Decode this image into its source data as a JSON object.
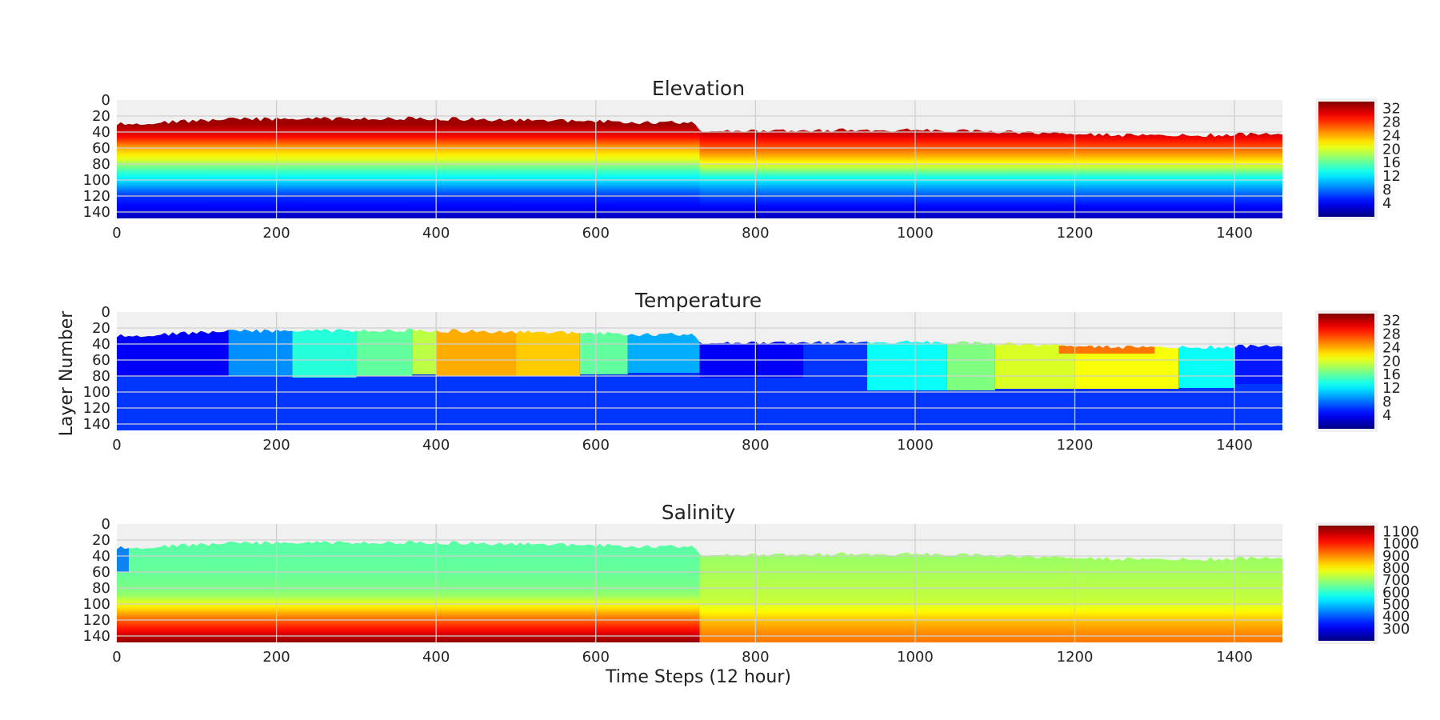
{
  "figure": {
    "shared_xlabel": "Time Steps (12 hour)",
    "shared_ylabel": "Layer Number"
  },
  "chart_data": [
    {
      "type": "heatmap",
      "title": "Elevation",
      "colormap": "jet",
      "xlim": [
        0,
        1460
      ],
      "ylim": [
        148,
        0
      ],
      "y_inverted": true,
      "x_ticks": [
        0,
        200,
        400,
        600,
        800,
        1000,
        1200,
        1400
      ],
      "y_ticks": [
        0,
        20,
        40,
        60,
        80,
        100,
        120,
        140
      ],
      "grid": true,
      "colorbar": {
        "range": [
          0,
          34
        ],
        "ticks": [
          32,
          28,
          24,
          20,
          16,
          12,
          8,
          4
        ]
      },
      "surface_breakpoints": {
        "x": [
          0,
          150,
          380,
          728,
          730,
          1000,
          1300,
          1460
        ],
        "top_layer": [
          30,
          24,
          23,
          29,
          40,
          37,
          45,
          42
        ]
      },
      "regime_change_x": 730,
      "profile_first_half": {
        "layer": [
          30,
          45,
          60,
          75,
          88,
          100,
          110,
          120,
          135,
          148
        ],
        "value": [
          33,
          30,
          24,
          20,
          15,
          12,
          9,
          6,
          4,
          2
        ]
      },
      "profile_second_half": {
        "layer": [
          40,
          55,
          70,
          82,
          95,
          108,
          120,
          135,
          148
        ],
        "value": [
          32,
          28,
          24,
          20,
          14,
          10,
          7,
          4,
          2
        ]
      }
    },
    {
      "type": "heatmap",
      "title": "Temperature",
      "colormap": "jet",
      "xlim": [
        0,
        1460
      ],
      "ylim": [
        148,
        0
      ],
      "y_inverted": true,
      "x_ticks": [
        0,
        200,
        400,
        600,
        800,
        1000,
        1200,
        1400
      ],
      "y_ticks": [
        0,
        20,
        40,
        60,
        80,
        100,
        120,
        140
      ],
      "grid": true,
      "colorbar": {
        "range": [
          0,
          34
        ],
        "ticks": [
          32,
          28,
          24,
          20,
          16,
          12,
          8,
          4
        ]
      },
      "surface_breakpoints": {
        "x": [
          0,
          150,
          380,
          728,
          730,
          1000,
          1300,
          1460
        ],
        "top_layer": [
          30,
          24,
          23,
          29,
          40,
          37,
          45,
          42
        ]
      },
      "deep_value": 6,
      "upper_layer_segments": [
        {
          "x": [
            0,
            140
          ],
          "value": 4,
          "bottom_layer": 80
        },
        {
          "x": [
            140,
            220
          ],
          "value": 9,
          "bottom_layer": 80
        },
        {
          "x": [
            220,
            300
          ],
          "value": 14,
          "bottom_layer": 82
        },
        {
          "x": [
            300,
            370
          ],
          "value": 16,
          "bottom_layer": 80
        },
        {
          "x": [
            370,
            400
          ],
          "value": 19,
          "bottom_layer": 78
        },
        {
          "x": [
            400,
            500
          ],
          "value": 24,
          "bottom_layer": 80
        },
        {
          "x": [
            500,
            580
          ],
          "value": 23,
          "bottom_layer": 80
        },
        {
          "x": [
            580,
            640
          ],
          "value": 16,
          "bottom_layer": 78
        },
        {
          "x": [
            640,
            730
          ],
          "value": 10,
          "bottom_layer": 76
        },
        {
          "x": [
            730,
            860
          ],
          "value": 4,
          "bottom_layer": 82
        },
        {
          "x": [
            860,
            940
          ],
          "value": 6,
          "bottom_layer": 88
        },
        {
          "x": [
            940,
            1040
          ],
          "value": 13,
          "bottom_layer": 98
        },
        {
          "x": [
            1040,
            1100
          ],
          "value": 17,
          "bottom_layer": 98
        },
        {
          "x": [
            1100,
            1200
          ],
          "value": 20,
          "bottom_layer": 96
        },
        {
          "x": [
            1200,
            1330
          ],
          "value": 21,
          "bottom_layer": 96
        },
        {
          "x": [
            1330,
            1400
          ],
          "value": 13,
          "bottom_layer": 95
        },
        {
          "x": [
            1400,
            1460
          ],
          "value": 5,
          "bottom_layer": 90
        }
      ],
      "warm_streak": {
        "x": [
          1180,
          1300
        ],
        "layer": [
          42,
          52
        ],
        "value": 27
      }
    },
    {
      "type": "heatmap",
      "title": "Salinity",
      "colormap": "jet",
      "xlim": [
        0,
        1460
      ],
      "ylim": [
        148,
        0
      ],
      "y_inverted": true,
      "x_ticks": [
        0,
        200,
        400,
        600,
        800,
        1000,
        1200,
        1400
      ],
      "y_ticks": [
        0,
        20,
        40,
        60,
        80,
        100,
        120,
        140
      ],
      "grid": true,
      "xlabel": "Time Steps (12 hour)",
      "colorbar": {
        "range": [
          200,
          1150
        ],
        "ticks": [
          1100,
          1000,
          900,
          800,
          700,
          600,
          500,
          400,
          300
        ]
      },
      "surface_breakpoints": {
        "x": [
          0,
          150,
          380,
          728,
          730,
          1000,
          1300,
          1460
        ],
        "top_layer": [
          30,
          24,
          23,
          29,
          40,
          37,
          45,
          42
        ]
      },
      "profile_first_half": {
        "layer": [
          30,
          60,
          80,
          90,
          100,
          110,
          120,
          132,
          142,
          148
        ],
        "value": [
          640,
          650,
          670,
          700,
          780,
          860,
          940,
          1020,
          1100,
          1130
        ]
      },
      "profile_second_half": {
        "layer": [
          40,
          70,
          95,
          108,
          120,
          135,
          148
        ],
        "value": [
          700,
          720,
          740,
          790,
          850,
          900,
          920
        ]
      },
      "left_edge_low": {
        "x": [
          0,
          15
        ],
        "value": 420
      }
    }
  ]
}
